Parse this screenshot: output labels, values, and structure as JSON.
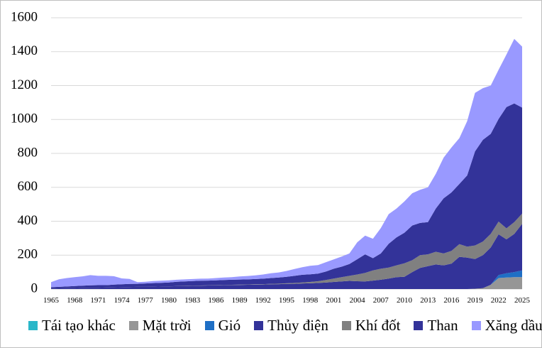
{
  "chart_data": {
    "type": "area",
    "stacked": true,
    "x": [
      1965,
      1966,
      1967,
      1968,
      1969,
      1970,
      1971,
      1972,
      1973,
      1974,
      1975,
      1976,
      1977,
      1978,
      1979,
      1980,
      1981,
      1982,
      1983,
      1984,
      1985,
      1986,
      1987,
      1988,
      1989,
      1990,
      1991,
      1992,
      1993,
      1994,
      1995,
      1996,
      1997,
      1998,
      1999,
      2000,
      2001,
      2002,
      2003,
      2004,
      2005,
      2006,
      2007,
      2008,
      2009,
      2010,
      2011,
      2012,
      2013,
      2014,
      2015,
      2016,
      2017,
      2018,
      2019,
      2020,
      2021,
      2022,
      2023,
      2024,
      2025
    ],
    "x_tick_labels": [
      "1965",
      "1968",
      "1971",
      "1974",
      "1977",
      "1980",
      "1983",
      "1986",
      "1989",
      "1992",
      "1995",
      "1998",
      "2001",
      "2004",
      "2007",
      "2010",
      "2013",
      "2016",
      "2019",
      "2022",
      "2025"
    ],
    "ylim": [
      0,
      1600
    ],
    "yticks": [
      0,
      200,
      400,
      600,
      800,
      1000,
      1200,
      1400,
      1600
    ],
    "grid": true,
    "legend_position": "bottom",
    "series": [
      {
        "name": "Tái tạo khác",
        "color": "#2ab7c9",
        "values": [
          0,
          0,
          0,
          0,
          0,
          0,
          0,
          0,
          0,
          0,
          0,
          0,
          0,
          0,
          0,
          0,
          0,
          0,
          0,
          0,
          0,
          0,
          0,
          0,
          0,
          0,
          0,
          0,
          0,
          0,
          0,
          0,
          0,
          0,
          0,
          0,
          0,
          0,
          0,
          0,
          0,
          0,
          0,
          0,
          0,
          0,
          0,
          0,
          0,
          0,
          0,
          0,
          0,
          0,
          0,
          0,
          0,
          0,
          0,
          0,
          0
        ]
      },
      {
        "name": "Mặt trời",
        "color": "#969696",
        "values": [
          0,
          0,
          0,
          0,
          0,
          0,
          0,
          0,
          0,
          0,
          0,
          0,
          0,
          0,
          0,
          0,
          0,
          0,
          0,
          0,
          0,
          0,
          0,
          0,
          0,
          0,
          0,
          0,
          0,
          0,
          0,
          0,
          0,
          0,
          0,
          0,
          0,
          0,
          0,
          0,
          0,
          0,
          0,
          0,
          0,
          0,
          0,
          0,
          0,
          0,
          0,
          0,
          0,
          0,
          2,
          5,
          25,
          65,
          68,
          70,
          70
        ]
      },
      {
        "name": "Gió",
        "color": "#1f6fc5",
        "values": [
          0,
          0,
          0,
          0,
          0,
          0,
          0,
          0,
          0,
          0,
          0,
          0,
          0,
          0,
          0,
          0,
          0,
          0,
          0,
          0,
          0,
          0,
          0,
          0,
          0,
          0,
          0,
          0,
          0,
          0,
          0,
          0,
          0,
          0,
          0,
          0,
          0,
          0,
          0,
          0,
          0,
          0,
          0,
          0,
          0,
          0,
          0,
          0,
          0,
          0,
          0,
          0,
          0,
          0,
          0,
          0,
          0,
          18,
          25,
          30,
          40
        ]
      },
      {
        "name": "Thủy điện",
        "color": "#333399",
        "values": [
          3,
          4,
          5,
          6,
          7,
          8,
          8,
          9,
          10,
          11,
          12,
          13,
          13,
          14,
          15,
          16,
          17,
          18,
          19,
          20,
          21,
          22,
          23,
          24,
          24,
          25,
          26,
          27,
          28,
          29,
          30,
          31,
          33,
          34,
          36,
          38,
          42,
          45,
          48,
          46,
          45,
          50,
          55,
          62,
          70,
          72,
          100,
          125,
          135,
          145,
          140,
          150,
          190,
          185,
          175,
          195,
          220,
          240,
          200,
          225,
          275
        ]
      },
      {
        "name": "Khí đốt",
        "color": "#808080",
        "values": [
          0,
          0,
          0,
          0,
          0,
          0,
          0,
          0,
          0,
          0,
          0,
          0,
          0,
          0,
          0,
          0,
          1,
          1,
          1,
          1,
          1,
          1,
          1,
          1,
          2,
          2,
          2,
          2,
          3,
          3,
          4,
          5,
          6,
          8,
          10,
          15,
          20,
          25,
          30,
          40,
          50,
          60,
          65,
          65,
          70,
          80,
          70,
          75,
          70,
          75,
          70,
          75,
          75,
          65,
          80,
          80,
          80,
          75,
          65,
          70,
          60
        ]
      },
      {
        "name": "Than",
        "color": "#333399",
        "values": [
          8,
          9,
          10,
          12,
          13,
          14,
          15,
          14,
          16,
          17,
          18,
          18,
          20,
          21,
          22,
          23,
          25,
          26,
          27,
          28,
          28,
          28,
          29,
          30,
          30,
          30,
          31,
          32,
          34,
          36,
          38,
          42,
          45,
          45,
          45,
          50,
          58,
          62,
          70,
          90,
          110,
          72,
          90,
          140,
          165,
          180,
          205,
          190,
          190,
          255,
          325,
          345,
          355,
          420,
          555,
          600,
          590,
          605,
          715,
          700,
          625
        ]
      },
      {
        "name": "Xăng dầu",
        "color": "#9999ff",
        "values": [
          30,
          45,
          50,
          52,
          55,
          60,
          55,
          55,
          50,
          35,
          30,
          10,
          10,
          12,
          12,
          12,
          12,
          12,
          12,
          12,
          12,
          14,
          15,
          15,
          18,
          20,
          22,
          25,
          28,
          30,
          35,
          40,
          45,
          50,
          50,
          55,
          55,
          60,
          62,
          100,
          110,
          115,
          150,
          175,
          170,
          185,
          190,
          195,
          205,
          205,
          240,
          265,
          270,
          320,
          345,
          305,
          285,
          290,
          310,
          380,
          360
        ]
      }
    ]
  }
}
